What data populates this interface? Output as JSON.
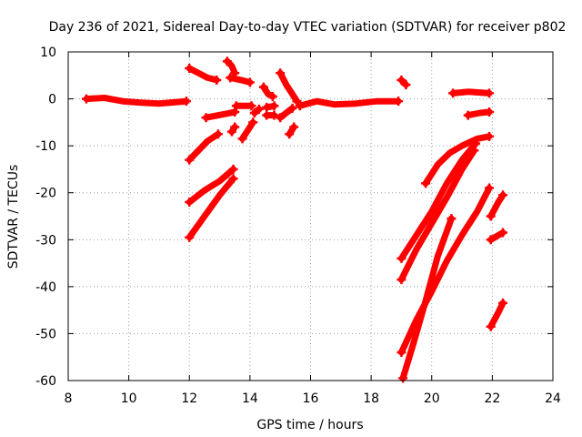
{
  "chart_data": {
    "type": "scatter",
    "title": "Day 236 of 2021, Sidereal Day-to-day VTEC variation (SDTVAR) for receiver p802",
    "xlabel": "GPS time / hours",
    "ylabel": "SDTVAR / TECUs",
    "xlim": [
      8,
      24
    ],
    "ylim": [
      -60,
      10
    ],
    "x_ticks": [
      "8",
      "10",
      "12",
      "14",
      "16",
      "18",
      "20",
      "22",
      "24"
    ],
    "y_ticks": [
      "10",
      "0",
      "-10",
      "-20",
      "-30",
      "-40",
      "-50",
      "-60"
    ],
    "grid": true,
    "marker_color": "#ff0000",
    "segments": [
      [
        [
          8.6,
          0.0
        ],
        [
          9.2,
          0.2
        ],
        [
          9.8,
          -0.5
        ],
        [
          10.4,
          -0.8
        ],
        [
          11.0,
          -1.0
        ],
        [
          11.9,
          -0.5
        ]
      ],
      [
        [
          12.0,
          6.5
        ],
        [
          12.3,
          5.5
        ],
        [
          12.6,
          4.5
        ],
        [
          12.9,
          4.0
        ]
      ],
      [
        [
          12.0,
          -13.0
        ],
        [
          12.3,
          -11.0
        ],
        [
          12.6,
          -9.0
        ],
        [
          12.95,
          -7.5
        ]
      ],
      [
        [
          12.0,
          -22.0
        ],
        [
          12.5,
          -19.5
        ],
        [
          13.0,
          -17.5
        ],
        [
          13.45,
          -15.0
        ]
      ],
      [
        [
          12.0,
          -29.5
        ],
        [
          12.5,
          -25.0
        ],
        [
          13.0,
          -20.5
        ],
        [
          13.45,
          -17.0
        ]
      ],
      [
        [
          12.55,
          -4.0
        ],
        [
          13.2,
          -3.2
        ],
        [
          13.5,
          -2.8
        ]
      ],
      [
        [
          13.25,
          8.0
        ],
        [
          13.4,
          7.0
        ],
        [
          13.5,
          5.5
        ]
      ],
      [
        [
          13.35,
          4.5
        ],
        [
          13.7,
          4.0
        ],
        [
          14.0,
          3.5
        ]
      ],
      [
        [
          13.4,
          -7.0
        ],
        [
          13.5,
          -6.0
        ]
      ],
      [
        [
          13.55,
          -1.5
        ],
        [
          14.05,
          -1.5
        ]
      ],
      [
        [
          13.75,
          -8.5
        ],
        [
          13.95,
          -6.5
        ],
        [
          14.1,
          -5.0
        ]
      ],
      [
        [
          14.15,
          -3.0
        ],
        [
          14.3,
          -2.2
        ]
      ],
      [
        [
          14.45,
          2.5
        ],
        [
          14.6,
          1.0
        ],
        [
          14.75,
          0.5
        ]
      ],
      [
        [
          14.55,
          -1.8
        ],
        [
          14.8,
          -1.5
        ]
      ],
      [
        [
          14.55,
          -3.5
        ],
        [
          14.8,
          -3.5
        ]
      ],
      [
        [
          15.0,
          5.5
        ],
        [
          15.2,
          3.0
        ],
        [
          15.4,
          1.0
        ],
        [
          15.55,
          -0.5
        ]
      ],
      [
        [
          15.0,
          -4.0
        ],
        [
          15.2,
          -3.0
        ],
        [
          15.4,
          -2.0
        ]
      ],
      [
        [
          15.3,
          -7.5
        ],
        [
          15.45,
          -6.0
        ]
      ],
      [
        [
          15.65,
          -1.5
        ],
        [
          16.2,
          -0.5
        ],
        [
          16.8,
          -1.2
        ],
        [
          17.5,
          -1.0
        ],
        [
          18.2,
          -0.5
        ],
        [
          18.9,
          -0.5
        ]
      ],
      [
        [
          19.0,
          4.0
        ],
        [
          19.15,
          3.0
        ]
      ],
      [
        [
          19.8,
          -18.0
        ],
        [
          20.2,
          -14.0
        ],
        [
          20.6,
          -11.5
        ],
        [
          21.0,
          -10.0
        ],
        [
          21.5,
          -8.5
        ],
        [
          21.9,
          -8.0
        ]
      ],
      [
        [
          19.0,
          -34.0
        ],
        [
          19.5,
          -29.0
        ],
        [
          20.0,
          -24.0
        ],
        [
          20.5,
          -18.0
        ],
        [
          21.0,
          -13.0
        ],
        [
          21.45,
          -9.5
        ]
      ],
      [
        [
          19.0,
          -38.5
        ],
        [
          19.5,
          -32.0
        ],
        [
          20.0,
          -26.5
        ],
        [
          20.5,
          -21.0
        ],
        [
          21.0,
          -15.0
        ],
        [
          21.4,
          -11.0
        ]
      ],
      [
        [
          19.0,
          -54.0
        ],
        [
          19.5,
          -47.0
        ],
        [
          20.0,
          -41.0
        ],
        [
          20.5,
          -34.5
        ],
        [
          21.0,
          -29.0
        ],
        [
          21.5,
          -24.0
        ],
        [
          21.9,
          -19.0
        ]
      ],
      [
        [
          19.05,
          -59.5
        ],
        [
          19.4,
          -52.0
        ],
        [
          19.8,
          -43.0
        ],
        [
          20.2,
          -33.5
        ],
        [
          20.65,
          -25.5
        ]
      ],
      [
        [
          20.7,
          1.2
        ],
        [
          21.2,
          1.5
        ],
        [
          21.9,
          1.2
        ]
      ],
      [
        [
          21.2,
          -3.5
        ],
        [
          21.6,
          -3.0
        ],
        [
          21.9,
          -2.8
        ]
      ],
      [
        [
          21.95,
          -25.0
        ],
        [
          22.2,
          -22.0
        ],
        [
          22.35,
          -20.5
        ]
      ],
      [
        [
          21.95,
          -30.0
        ],
        [
          22.35,
          -28.5
        ]
      ],
      [
        [
          21.95,
          -48.5
        ],
        [
          22.2,
          -45.5
        ],
        [
          22.35,
          -43.5
        ]
      ]
    ]
  }
}
